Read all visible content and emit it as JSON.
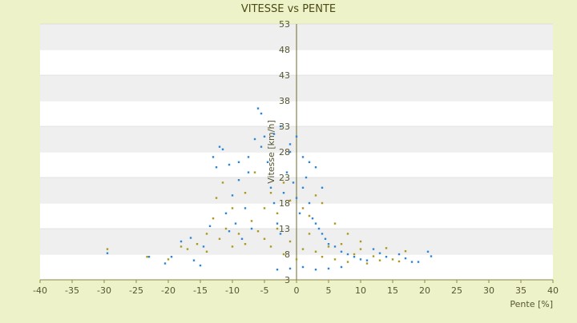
{
  "chart_data": {
    "type": "scatter",
    "title": "VITESSE vs PENTE",
    "xlabel": "Pente [%]",
    "ylabel": "Vitesse [km/h]",
    "xlim": [
      -40,
      40
    ],
    "ylim": [
      3,
      53
    ],
    "x_ticks": [
      -40,
      -35,
      -30,
      -25,
      -20,
      -15,
      -10,
      -5,
      0,
      5,
      10,
      15,
      20,
      25,
      30,
      35,
      40
    ],
    "y_ticks": [
      3,
      8,
      13,
      18,
      23,
      28,
      33,
      38,
      43,
      48,
      53
    ],
    "grid": "horizontal alternating bands",
    "legend": "none",
    "series": [
      {
        "color": "#2e86d4",
        "points": [
          [
            -29.5,
            8.2
          ],
          [
            -23,
            7.5
          ],
          [
            -20.5,
            6.2
          ],
          [
            -19.5,
            7.5
          ],
          [
            -18,
            10.5
          ],
          [
            -16.5,
            11.2
          ],
          [
            -16,
            6.8
          ],
          [
            -15,
            5.8
          ],
          [
            -14.5,
            9.5
          ],
          [
            -13.5,
            13.5
          ],
          [
            -13,
            27
          ],
          [
            -12,
            29
          ],
          [
            -12.5,
            25
          ],
          [
            -11.5,
            28.5
          ],
          [
            -11,
            16
          ],
          [
            -10.5,
            12.5
          ],
          [
            -10,
            19.5
          ],
          [
            -9.5,
            14
          ],
          [
            -9,
            22.5
          ],
          [
            -8.5,
            11
          ],
          [
            -8,
            17
          ],
          [
            -7.5,
            24
          ],
          [
            -7,
            13
          ],
          [
            -6.5,
            30.5
          ],
          [
            -6,
            36.5
          ],
          [
            -5.5,
            35.5
          ],
          [
            -5,
            31
          ],
          [
            -4.5,
            26
          ],
          [
            -4,
            21
          ],
          [
            -3.5,
            18
          ],
          [
            -3,
            14
          ],
          [
            -2.5,
            12
          ],
          [
            -2,
            20
          ],
          [
            -1.5,
            24
          ],
          [
            -1,
            28
          ],
          [
            -0.5,
            22
          ],
          [
            0,
            19
          ],
          [
            0.5,
            16
          ],
          [
            1,
            21
          ],
          [
            1.5,
            23
          ],
          [
            2,
            18
          ],
          [
            2.5,
            15
          ],
          [
            3,
            14
          ],
          [
            3.5,
            13
          ],
          [
            4,
            12
          ],
          [
            4.5,
            11
          ],
          [
            5,
            10
          ],
          [
            6,
            9.5
          ],
          [
            7,
            8.5
          ],
          [
            8,
            8
          ],
          [
            9,
            7.5
          ],
          [
            10,
            7
          ],
          [
            11,
            6.8
          ],
          [
            12,
            9
          ],
          [
            13,
            8.2
          ],
          [
            14,
            7.5
          ],
          [
            16,
            8
          ],
          [
            17,
            7.2
          ],
          [
            18,
            6.5
          ],
          [
            19,
            6.5
          ],
          [
            20.5,
            8.5
          ],
          [
            21,
            7.6
          ],
          [
            -3,
            5
          ],
          [
            -1,
            5.2
          ],
          [
            1,
            5.5
          ],
          [
            3,
            5
          ],
          [
            5,
            5.2
          ],
          [
            7,
            5.5
          ],
          [
            2,
            26
          ],
          [
            1,
            27
          ],
          [
            -1,
            29.5
          ],
          [
            0,
            31
          ],
          [
            -3.5,
            31.5
          ],
          [
            -2.5,
            33
          ],
          [
            -5.5,
            29
          ],
          [
            -7.5,
            27
          ],
          [
            -9,
            26
          ],
          [
            -10.5,
            25.5
          ],
          [
            3,
            25
          ],
          [
            4,
            21
          ]
        ]
      },
      {
        "color": "#a99a1c",
        "points": [
          [
            -29.5,
            9
          ],
          [
            -23.3,
            7.5
          ],
          [
            -17,
            9
          ],
          [
            -15.5,
            10
          ],
          [
            -14,
            8.5
          ],
          [
            -13,
            15
          ],
          [
            -12,
            11
          ],
          [
            -11,
            13
          ],
          [
            -10,
            9.5
          ],
          [
            -9,
            12
          ],
          [
            -8,
            10
          ],
          [
            -7,
            14.5
          ],
          [
            -6,
            12.5
          ],
          [
            -5,
            11
          ],
          [
            -4,
            9.5
          ],
          [
            -3,
            13
          ],
          [
            -2,
            8
          ],
          [
            -1,
            10.5
          ],
          [
            0,
            7
          ],
          [
            1,
            9
          ],
          [
            2,
            12
          ],
          [
            3,
            8.5
          ],
          [
            4,
            7.5
          ],
          [
            5,
            9.5
          ],
          [
            6,
            7
          ],
          [
            7,
            10
          ],
          [
            8,
            6.5
          ],
          [
            9,
            8
          ],
          [
            10,
            9
          ],
          [
            11,
            6.2
          ],
          [
            12,
            7.6
          ],
          [
            13,
            6.8
          ],
          [
            14,
            9.2
          ],
          [
            15,
            7
          ],
          [
            16,
            6.6
          ],
          [
            17,
            8.6
          ],
          [
            -5,
            17
          ],
          [
            -4,
            20
          ],
          [
            -3,
            16
          ],
          [
            -2,
            22
          ],
          [
            -1,
            18.5
          ],
          [
            1,
            17
          ],
          [
            2,
            15.5
          ],
          [
            -8,
            20
          ],
          [
            -6.5,
            24
          ],
          [
            -10,
            17
          ],
          [
            -11.5,
            22
          ],
          [
            -12.5,
            19
          ],
          [
            -14,
            12
          ],
          [
            -18,
            9.5
          ],
          [
            -20,
            7
          ],
          [
            3,
            19.5
          ],
          [
            4,
            18
          ],
          [
            6,
            14
          ],
          [
            8,
            12
          ],
          [
            10,
            10.5
          ]
        ]
      }
    ]
  }
}
